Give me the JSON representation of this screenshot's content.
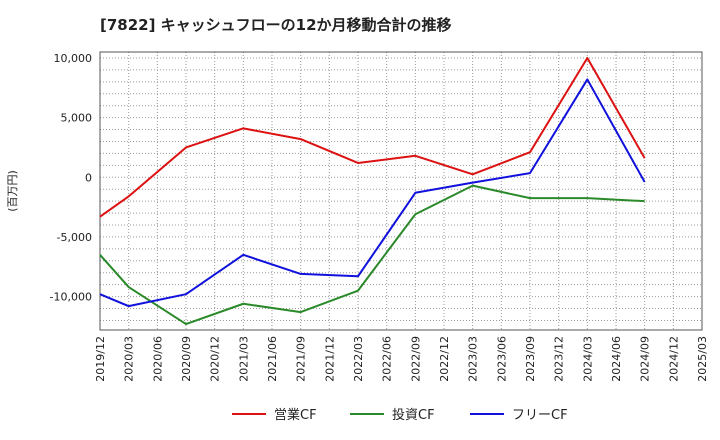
{
  "chart_data": {
    "type": "line",
    "title": "[7822]  キャッシュフローの12か月移動合計の推移",
    "ylabel": "(百万円)",
    "xlabel": "",
    "ylim": [
      -12800,
      10500
    ],
    "yticks": [
      10000,
      5000,
      0,
      -5000,
      -10000
    ],
    "ytick_labels": [
      "10,000",
      "5,000",
      "0",
      "-5,000",
      "-10,000"
    ],
    "x": [
      "2019/12",
      "2020/03",
      "2020/06",
      "2020/09",
      "2020/12",
      "2021/03",
      "2021/06",
      "2021/09",
      "2021/12",
      "2022/03",
      "2022/06",
      "2022/09",
      "2022/12",
      "2023/03",
      "2023/06",
      "2023/09",
      "2023/12",
      "2024/03",
      "2024/06",
      "2024/09",
      "2024/12",
      "2025/03"
    ],
    "series": [
      {
        "name": "営業CF",
        "color": "#dd1111",
        "values": [
          -3300,
          -1600,
          null,
          2500,
          null,
          4100,
          null,
          3200,
          null,
          1200,
          null,
          1800,
          null,
          250,
          null,
          2100,
          null,
          10000,
          null,
          1600,
          null,
          null
        ]
      },
      {
        "name": "投資CF",
        "color": "#2a8a2a",
        "values": [
          -6500,
          -9200,
          null,
          -12300,
          null,
          -10600,
          null,
          -11300,
          null,
          -9500,
          null,
          -3100,
          null,
          -700,
          null,
          -1750,
          null,
          -1750,
          null,
          -2000,
          null,
          null
        ]
      },
      {
        "name": "フリーCF",
        "color": "#1111dd",
        "values": [
          -9800,
          -10800,
          null,
          -9800,
          null,
          -6500,
          null,
          -8100,
          null,
          -8300,
          null,
          -1300,
          null,
          -450,
          null,
          350,
          null,
          8200,
          null,
          -400,
          null,
          null
        ]
      }
    ],
    "grid": true,
    "legend": "bottom"
  }
}
